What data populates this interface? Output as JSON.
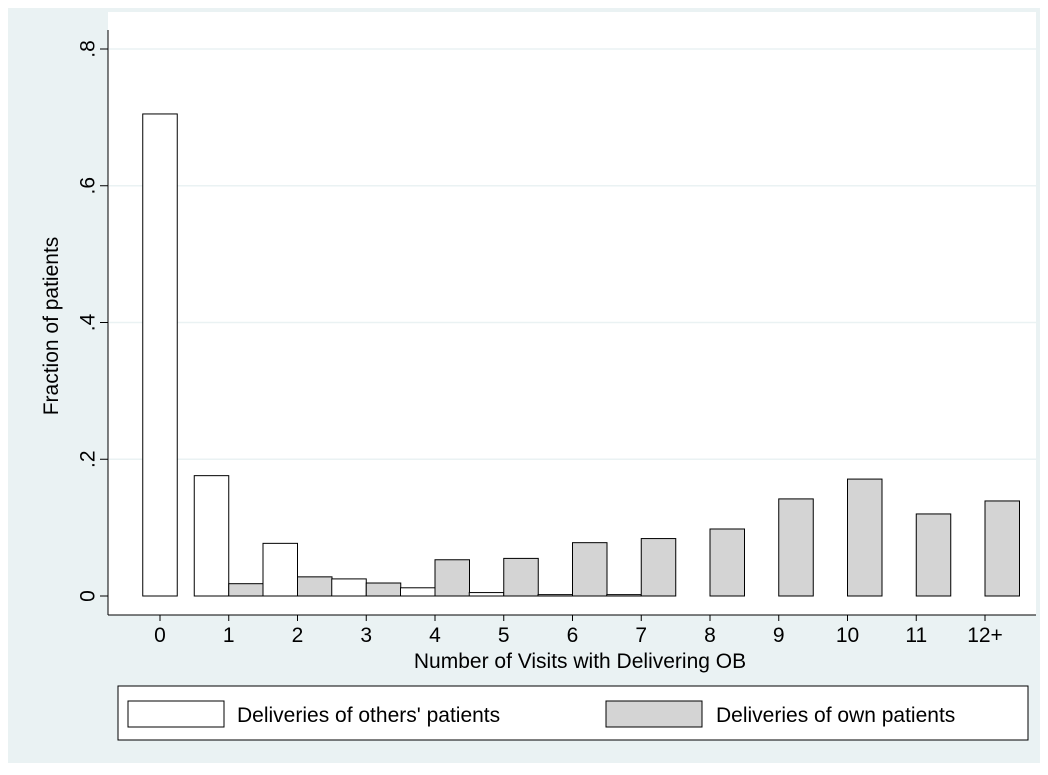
{
  "chart_data": {
    "type": "bar",
    "title": "",
    "xlabel": "Number of Visits with Delivering OB",
    "ylabel": "Fraction of patients",
    "ylim": [
      0,
      0.8
    ],
    "yticks": [
      {
        "value": 0,
        "label": "0"
      },
      {
        "value": 0.2,
        "label": ".2"
      },
      {
        "value": 0.4,
        "label": ".4"
      },
      {
        "value": 0.6,
        "label": ".6"
      },
      {
        "value": 0.8,
        "label": ".8"
      }
    ],
    "categories": [
      "0",
      "1",
      "2",
      "3",
      "4",
      "5",
      "6",
      "7",
      "8",
      "9",
      "10",
      "11",
      "12+"
    ],
    "series": [
      {
        "name": "Deliveries of others' patients",
        "color": "#ffffff",
        "values": [
          0.705,
          0.176,
          0.077,
          0.025,
          0.012,
          0.005,
          0.002,
          0.002,
          0,
          0,
          0,
          0,
          0
        ]
      },
      {
        "name": "Deliveries of own patients",
        "color": "#d4d4d4",
        "values": [
          0,
          0.018,
          0.028,
          0.019,
          0.053,
          0.055,
          0.078,
          0.084,
          0.098,
          0.142,
          0.171,
          0.12,
          0.139
        ]
      }
    ],
    "grid": true,
    "legend": "bottom",
    "colors": {
      "outer_background": "#eaf2f3",
      "plot_background": "#ffffff",
      "gridline": "#eaf2f3",
      "bar_outline": "#000000"
    }
  }
}
